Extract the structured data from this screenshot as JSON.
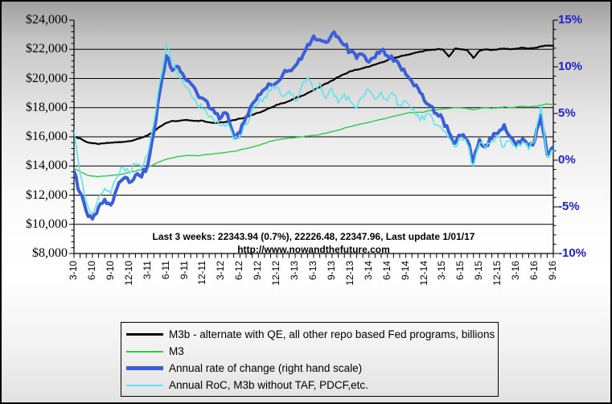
{
  "colors": {
    "m3b_line": "#000000",
    "m3_line": "#2fc84f",
    "roc_line": "#3a5fd6",
    "roc_no_taf_line": "#5fe3ea",
    "right_axis_text": "#2222cc",
    "axis_and_grid": "#000000"
  },
  "annotation": {
    "line1": "Last 3 weeks: 22343.94 (0.7%), 22226.48, 22347.96, Last update 1/01/17",
    "line2": "http://www.nowandthefuture.com"
  },
  "chart_data": {
    "type": "line",
    "title": "",
    "x_unit": "month (3-2010 through 9-2016, monthly points)",
    "x_labels": [
      "3-10",
      "6-10",
      "9-10",
      "12-10",
      "3-11",
      "6-11",
      "9-11",
      "12-11",
      "3-12",
      "6-12",
      "9-12",
      "12-12",
      "3-13",
      "6-13",
      "9-13",
      "12-13",
      "3-14",
      "6-14",
      "9-14",
      "12-14",
      "3-15",
      "6-15",
      "9-15",
      "12-15",
      "3-16",
      "6-16",
      "9-16"
    ],
    "months_per_label": 3,
    "grid": "horizontal-major-only",
    "legend_position": "bottom-center",
    "left_axis": {
      "tick_labels": [
        "$24,000",
        "$22,000",
        "$20,000",
        "$18,000",
        "$16,000",
        "$14,000",
        "$12,000",
        "$10,000",
        "$8,000"
      ],
      "min": 8000,
      "max": 24000,
      "major": 2000,
      "minor": 400
    },
    "right_axis": {
      "tick_labels": [
        "15%",
        "10%",
        "5%",
        "0%",
        "-5%",
        "-10%"
      ],
      "min": -10,
      "max": 15,
      "major": 5,
      "minor": 1
    },
    "series": [
      {
        "name": "M3b - alternate with QE, all other repo based Fed programs, billions",
        "axis": "left",
        "color": "#000000",
        "width": 2.2,
        "legend_thickness": 3,
        "jitter": 28,
        "values": [
          16000,
          15900,
          15650,
          15560,
          15500,
          15550,
          15600,
          15620,
          15650,
          15700,
          15800,
          15950,
          16100,
          16350,
          16700,
          16950,
          17100,
          17080,
          17150,
          17120,
          17100,
          17100,
          17000,
          16950,
          17000,
          17050,
          17150,
          17250,
          17350,
          17500,
          17650,
          17800,
          18000,
          18200,
          18300,
          18450,
          18650,
          18800,
          19000,
          19200,
          19400,
          19650,
          19850,
          20100,
          20300,
          20500,
          20600,
          20700,
          20800,
          20950,
          21100,
          21250,
          21400,
          21500,
          21600,
          21700,
          21800,
          21900,
          21950,
          22000,
          22000,
          21500,
          22050,
          22000,
          21950,
          21400,
          21900,
          22000,
          21950,
          22000,
          22050,
          22000,
          22050,
          22100,
          22050,
          22100,
          22200,
          22250,
          22250
        ]
      },
      {
        "name": "M3",
        "axis": "left",
        "color": "#2fc84f",
        "width": 1.4,
        "legend_thickness": 2,
        "jitter": 22,
        "values": [
          13850,
          13600,
          13400,
          13300,
          13280,
          13300,
          13350,
          13400,
          13450,
          13550,
          13650,
          13780,
          13900,
          14100,
          14300,
          14450,
          14550,
          14650,
          14700,
          14720,
          14700,
          14750,
          14800,
          14850,
          14900,
          14950,
          15000,
          15100,
          15200,
          15300,
          15400,
          15550,
          15700,
          15800,
          15850,
          15900,
          15950,
          16000,
          16050,
          16100,
          16150,
          16250,
          16350,
          16450,
          16600,
          16700,
          16800,
          16900,
          17000,
          17100,
          17200,
          17300,
          17400,
          17500,
          17600,
          17650,
          17680,
          17700,
          17800,
          17850,
          17900,
          17950,
          18000,
          18000,
          17950,
          17850,
          17950,
          18000,
          17950,
          18000,
          18050,
          18000,
          18050,
          18100,
          18050,
          18100,
          18150,
          18250,
          18200
        ]
      },
      {
        "name": "Annual rate of change (right hand scale)",
        "axis": "right",
        "color": "#3a5fd6",
        "width": 4,
        "legend_thickness": 5,
        "jitter": 0.38,
        "values": [
          -1.2,
          -3.5,
          -5.5,
          -6.3,
          -5.0,
          -4.2,
          -4.8,
          -3.0,
          -2.0,
          -2.4,
          -1.6,
          -1.8,
          -0.5,
          3.0,
          7.5,
          11.2,
          9.6,
          10.0,
          8.8,
          8.2,
          7.2,
          6.6,
          5.6,
          5.0,
          4.6,
          4.9,
          2.7,
          2.9,
          4.6,
          6.0,
          7.0,
          7.6,
          8.1,
          8.3,
          9.2,
          9.6,
          10.1,
          10.8,
          12.4,
          13.3,
          12.9,
          12.6,
          13.5,
          13.2,
          12.3,
          11.6,
          10.9,
          11.3,
          10.5,
          11.0,
          11.8,
          11.2,
          10.6,
          10.1,
          9.2,
          8.4,
          7.7,
          6.4,
          5.8,
          5.0,
          4.4,
          3.0,
          1.8,
          2.6,
          2.1,
          -0.2,
          2.2,
          1.6,
          2.3,
          2.9,
          3.8,
          2.5,
          1.6,
          2.3,
          1.5,
          2.2,
          4.8,
          0.6,
          1.4
        ]
      },
      {
        "name": "Annual RoC, M3b without TAF, PDCF,etc.",
        "axis": "right",
        "color": "#5fe3ea",
        "width": 1.6,
        "legend_thickness": 2,
        "jitter": 0.45,
        "values": [
          3.2,
          -1.5,
          -4.5,
          -5.7,
          -4.0,
          -3.0,
          -3.6,
          -1.8,
          -0.8,
          -1.4,
          -0.4,
          -0.8,
          0.6,
          4.0,
          8.5,
          12.4,
          10.3,
          9.2,
          8.0,
          7.0,
          6.0,
          5.4,
          4.6,
          4.0,
          3.7,
          4.0,
          2.2,
          2.5,
          3.8,
          5.2,
          6.1,
          6.8,
          7.4,
          7.9,
          6.8,
          7.4,
          6.3,
          7.8,
          8.9,
          7.4,
          8.3,
          6.6,
          7.7,
          6.1,
          7.1,
          6.3,
          5.6,
          6.7,
          7.5,
          6.5,
          7.3,
          6.4,
          7.0,
          5.9,
          6.3,
          5.4,
          4.8,
          4.3,
          4.9,
          3.8,
          3.2,
          2.4,
          1.4,
          2.2,
          1.7,
          -0.6,
          1.8,
          1.2,
          2.0,
          2.6,
          1.4,
          2.1,
          1.3,
          2.0,
          1.1,
          2.1,
          5.8,
          0.3,
          1.0
        ]
      }
    ]
  }
}
